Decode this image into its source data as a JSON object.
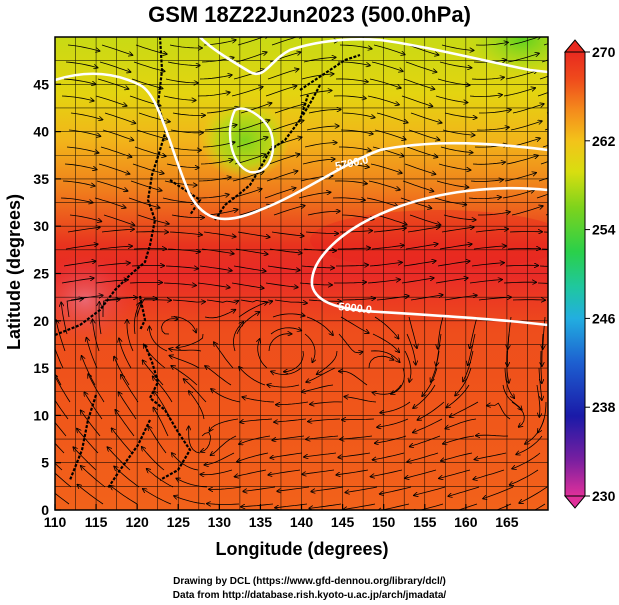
{
  "title": "GSM 18Z22Jun2023 (500.0hPa)",
  "x_axis": {
    "label": "Longitude (degrees)",
    "ticks": [
      "110",
      "115",
      "120",
      "125",
      "130",
      "135",
      "140",
      "145",
      "150",
      "155",
      "160",
      "165"
    ],
    "range": [
      110,
      170
    ]
  },
  "y_axis": {
    "label": "Latitude  (degrees)",
    "ticks": [
      "0",
      "5",
      "10",
      "15",
      "20",
      "25",
      "30",
      "35",
      "40",
      "45"
    ],
    "range": [
      0,
      50
    ]
  },
  "colorbar": {
    "ticks": [
      "270",
      "262",
      "254",
      "246",
      "238",
      "230"
    ],
    "range": [
      230,
      270
    ],
    "colors": [
      "#e0309a",
      "#7a1fa0",
      "#1a1aa8",
      "#1d5fd0",
      "#22aee0",
      "#1fc7a0",
      "#2ad04a",
      "#7ed31c",
      "#d8de10",
      "#f3c31a",
      "#f48a1c",
      "#ef4a1c",
      "#e82a20"
    ]
  },
  "contours": [
    {
      "label": "5700.0"
    },
    {
      "label": "5900.0"
    }
  ],
  "credits": {
    "line1": "Drawing by DCL (https://www.gfd-dennou.org/library/dcl/)",
    "line2": "Data from http://database.rish.kyoto-u.ac.jp/arch/jmadata/"
  }
}
